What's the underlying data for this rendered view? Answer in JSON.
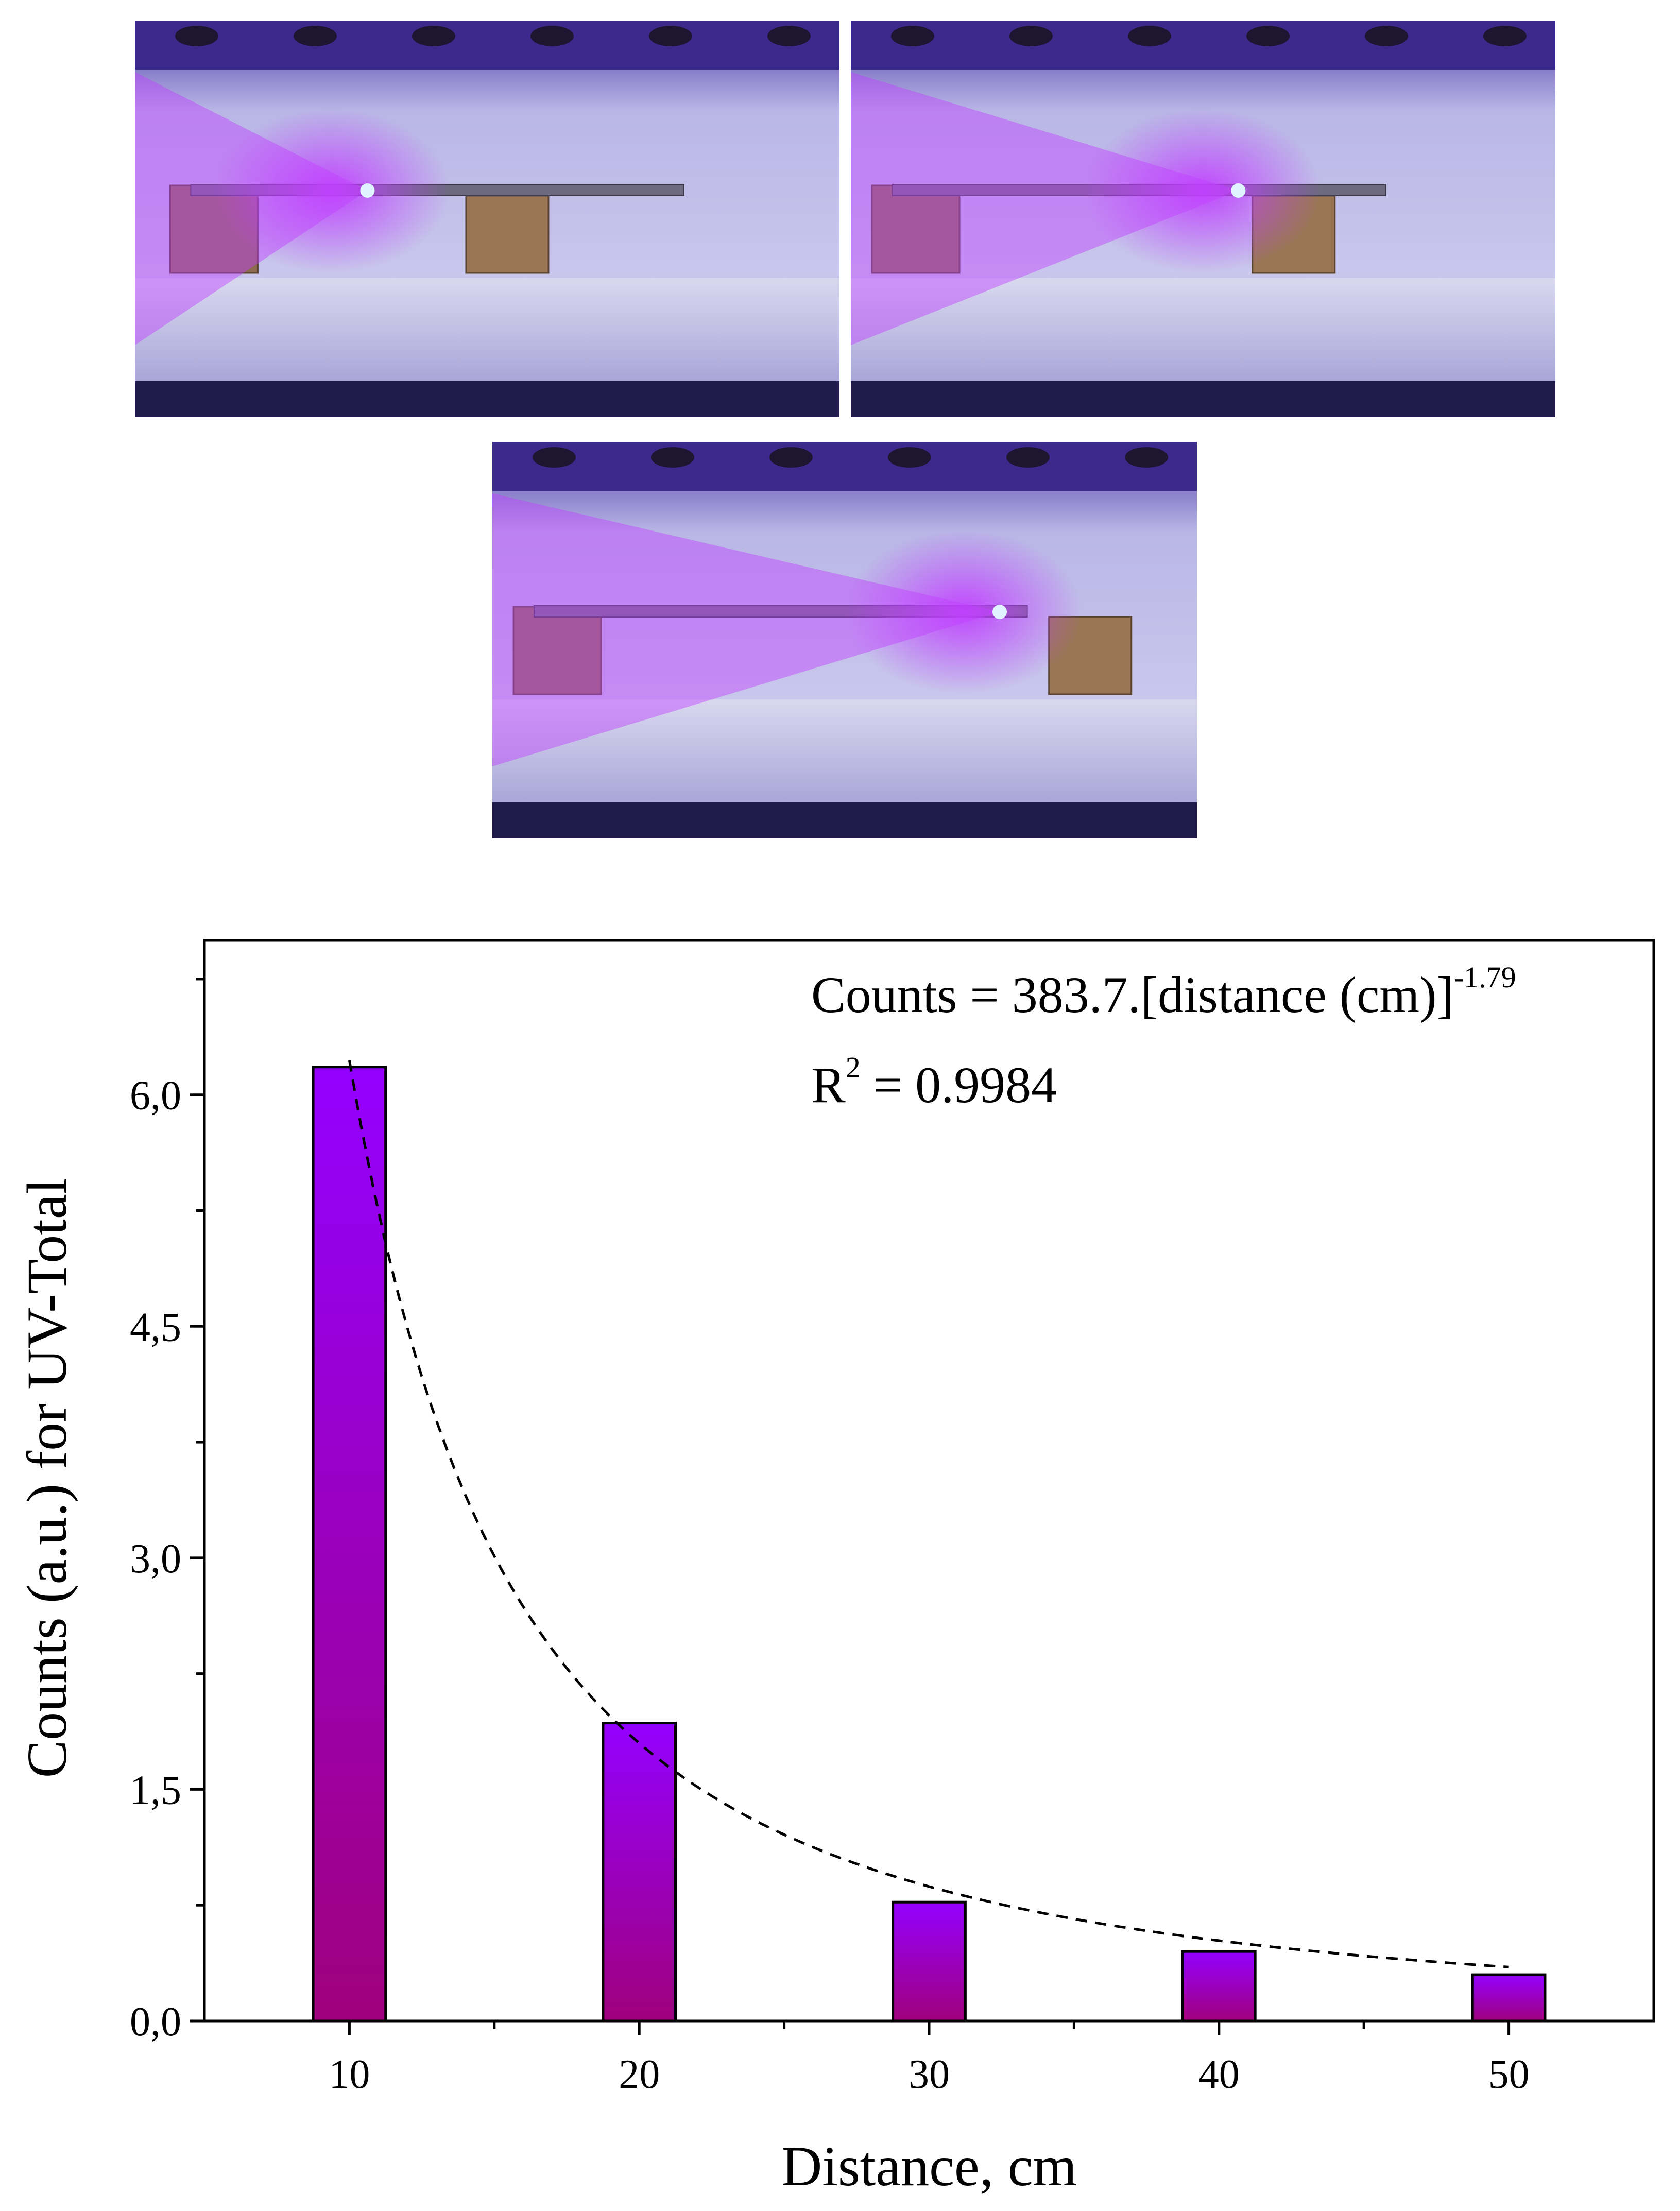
{
  "photos": [
    {
      "name": "setup-photo-1",
      "source_pos": 0.33,
      "box_left": 0.05,
      "box_right": 0.47
    },
    {
      "name": "setup-photo-2",
      "source_pos": 0.55,
      "box_left": 0.03,
      "box_right": 0.57
    },
    {
      "name": "setup-photo-3",
      "source_pos": 0.72,
      "box_left": 0.03,
      "box_right": 0.79
    }
  ],
  "colors": {
    "bar_top": "#9400ff",
    "bar_bottom": "#a0007c",
    "uv_glow": "#c040ff",
    "led_core": "#e0f4ff",
    "enclosure_wall": "#b9b6e6",
    "floor": "#d9d8ef"
  },
  "chart_data": {
    "type": "bar",
    "x": [
      10,
      20,
      30,
      40,
      50
    ],
    "values": [
      6.18,
      1.93,
      0.77,
      0.45,
      0.3
    ],
    "xlabel": "Distance, cm",
    "ylabel": "Counts (a.u.) for UV-Total",
    "xlim": [
      5,
      55
    ],
    "ylim": [
      0,
      7
    ],
    "xticks": [
      10,
      20,
      30,
      40,
      50
    ],
    "xtick_labels": [
      "10",
      "20",
      "30",
      "40",
      "50"
    ],
    "yticks": [
      0,
      1.5,
      3,
      4.5,
      6
    ],
    "ytick_labels": [
      "0,0",
      "1,5",
      "3,0",
      "4,5",
      "6,0"
    ],
    "bar_width": 2.5,
    "grid": false,
    "fit": {
      "type": "power",
      "coefficient": 383.7,
      "exponent": -1.79,
      "equation_main": "Counts = 383.7.[distance (cm)]",
      "equation_exp": "-1.79",
      "r2_label": "R",
      "r2_sup": "2",
      "r2_value": " = 0.9984",
      "style": "dashed"
    }
  }
}
